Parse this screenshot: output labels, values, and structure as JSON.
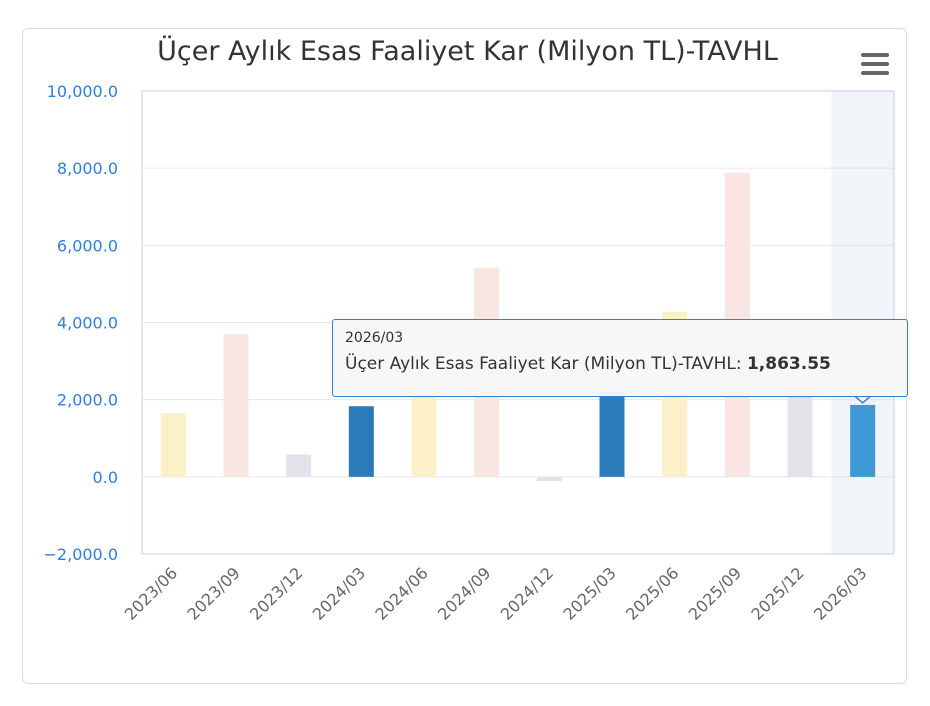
{
  "chart_data": {
    "type": "bar",
    "title": "Üçer Aylık Esas Faaliyet Kar (Milyon TL)-TAVHL",
    "categories": [
      "2023/06",
      "2023/09",
      "2023/12",
      "2024/03",
      "2024/06",
      "2024/09",
      "2024/12",
      "2025/03",
      "2025/06",
      "2025/09",
      "2025/12",
      "2026/03"
    ],
    "values": [
      1650,
      3700,
      580,
      1830,
      2800,
      5420,
      -110,
      2200,
      4280,
      7880,
      2280,
      1863.55
    ],
    "colors": [
      "#fbf0c8",
      "#f9e5e2",
      "#e6e2ec",
      "#2b7bba",
      "#fbf0c8",
      "#f9e5e2",
      "#e6e2ec",
      "#2b7bba",
      "#fbf0c8",
      "#f9e5e2",
      "#e6e2ec",
      "#3e98d6"
    ],
    "ylim": [
      -2000,
      10000
    ],
    "yticks": [
      -2000,
      0,
      2000,
      4000,
      6000,
      8000,
      10000
    ],
    "ytick_labels": [
      "−2,000.0",
      "0.0",
      "2,000.0",
      "4,000.0",
      "6,000.0",
      "8,000.0",
      "10,000.0"
    ],
    "xlabel": "",
    "ylabel": "",
    "highlighted_category": "2026/03",
    "grid": true,
    "legend": "none"
  },
  "tooltip": {
    "header": "2026/03",
    "series_label": "Üçer Aylık Esas Faaliyet Kar (Milyon TL)-TAVHL: ",
    "value": "1,863.55"
  },
  "menu": {
    "icon": "hamburger-menu-icon"
  }
}
